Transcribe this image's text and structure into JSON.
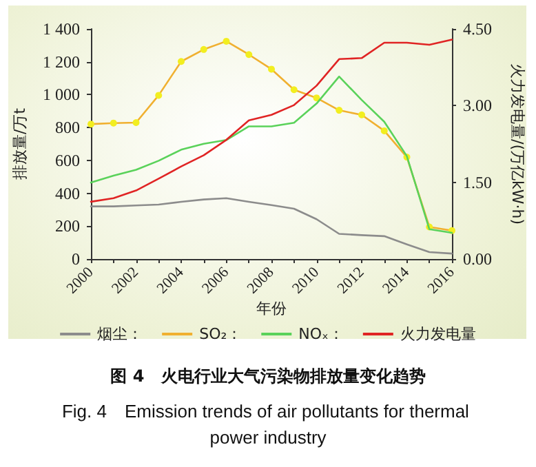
{
  "chart_data": {
    "type": "line",
    "title": "图 4　火电行业大气污染物排放量变化趋势",
    "subtitle": "Fig. 4　Emission trends of air pollutants for thermal power industry",
    "xlabel": "年份",
    "ylabel": "排放量/万t",
    "y2label": "火力发电量/(万亿kW·h)",
    "x": [
      2000,
      2001,
      2002,
      2003,
      2004,
      2005,
      2006,
      2007,
      2008,
      2009,
      2010,
      2011,
      2012,
      2013,
      2014,
      2015,
      2016
    ],
    "xlim": [
      2000,
      2016
    ],
    "xticks": [
      2000,
      2002,
      2004,
      2006,
      2008,
      2010,
      2012,
      2014,
      2016
    ],
    "ylim": [
      0,
      1400
    ],
    "yticks": [
      0,
      200,
      400,
      600,
      800,
      {
        "value": 1000,
        "label": "1 000"
      },
      {
        "value": 1200,
        "label": "1 200"
      },
      {
        "value": 1400,
        "label": "1 400"
      }
    ],
    "y2lim": [
      0,
      4.5
    ],
    "y2ticks": [
      {
        "value": 0,
        "label": "0.00"
      },
      {
        "value": 1.5,
        "label": "1.50"
      },
      {
        "value": 3,
        "label": "3.00"
      },
      {
        "value": 4.5,
        "label": "4.50"
      }
    ],
    "series": [
      {
        "name": "烟尘：",
        "color": "#8c8c8c",
        "values": [
          320,
          320,
          326,
          331,
          348,
          362,
          370,
          348,
          328,
          306,
          242,
          153,
          145,
          139,
          89,
          42,
          33
        ]
      },
      {
        "name": "SO₂：",
        "color": "#f0b030",
        "marker": "circle",
        "values": [
          821,
          827,
          830,
          996,
          1202,
          1275,
          1325,
          1244,
          1155,
          1030,
          980,
          905,
          877,
          780,
          620,
          195,
          173
        ]
      },
      {
        "name": "NOₓ：",
        "color": "#5ad25a",
        "values": [
          465,
          507,
          543,
          598,
          665,
          701,
          724,
          807,
          807,
          829,
          946,
          1110,
          968,
          835,
          626,
          181,
          159
        ]
      },
      {
        "name": "火力发电量",
        "color": "#e02424",
        "axis": "y2",
        "values": [
          1.12,
          1.19,
          1.34,
          1.57,
          1.81,
          2.03,
          2.33,
          2.71,
          2.82,
          3.01,
          3.39,
          3.91,
          3.93,
          4.23,
          4.23,
          4.19,
          4.29
        ]
      }
    ],
    "marker": "none",
    "line_style": "solid",
    "grid": false,
    "legend": "bottom"
  }
}
